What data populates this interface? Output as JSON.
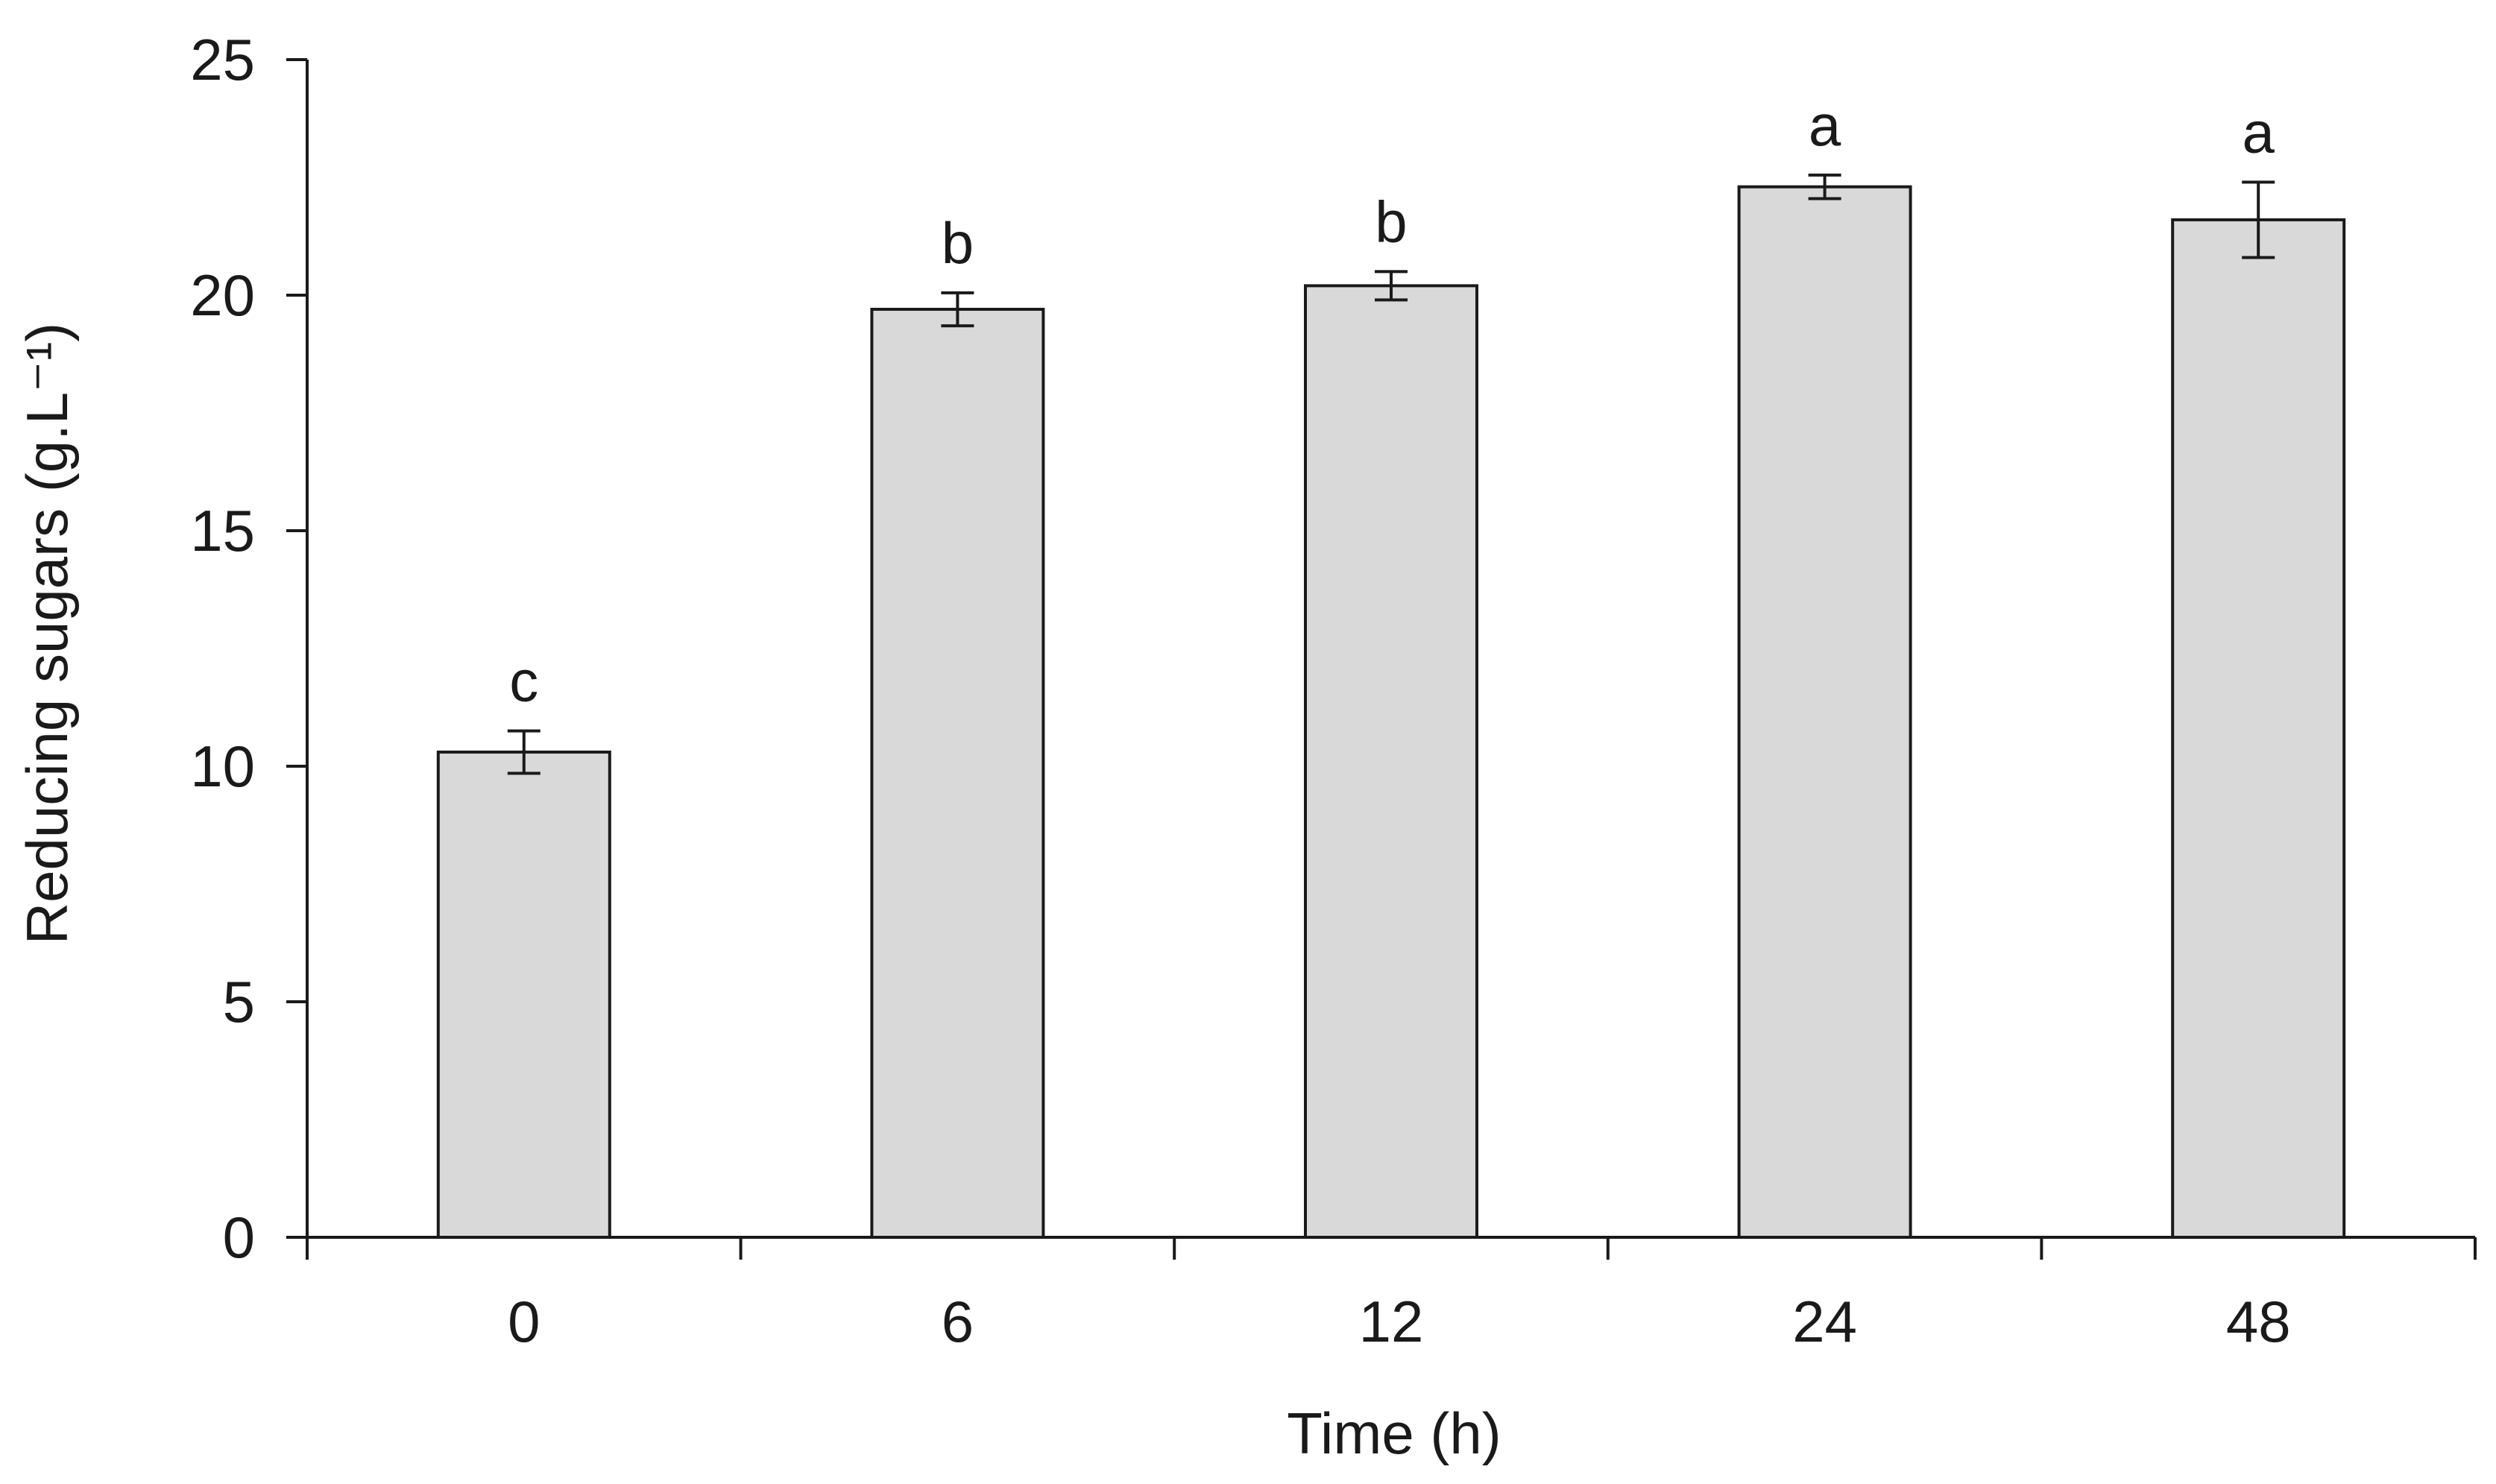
{
  "chart_data": {
    "type": "bar",
    "title": "",
    "xlabel": "Time (h)",
    "ylabel": "Reducing sugars (g.L⁻¹)",
    "categories": [
      "0",
      "6",
      "12",
      "24",
      "48"
    ],
    "values": [
      10.3,
      19.7,
      20.2,
      22.3,
      21.6
    ],
    "errors": [
      0.45,
      0.35,
      0.3,
      0.25,
      0.8
    ],
    "significance_letters": [
      "c",
      "b",
      "b",
      "a",
      "a"
    ],
    "ylim": [
      0,
      25
    ],
    "yticks": [
      0,
      5,
      10,
      15,
      20,
      25
    ],
    "grid": false,
    "legend": "none",
    "colors": {
      "bar_fill": "#d9d9d9",
      "bar_stroke": "#1a1a1a",
      "axis": "#1a1a1a"
    }
  }
}
